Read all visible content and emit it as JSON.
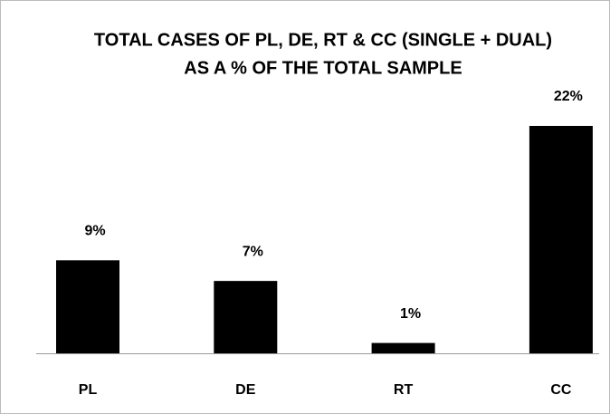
{
  "chart_data": {
    "type": "bar",
    "title": [
      "TOTAL CASES OF PL, DE, RT & CC (SINGLE + DUAL)",
      "AS A % OF THE TOTAL SAMPLE"
    ],
    "categories": [
      "PL",
      "DE",
      "RT",
      "CC"
    ],
    "values": [
      9,
      7,
      1,
      22
    ],
    "value_labels": [
      "9%",
      "7%",
      "1%",
      "22%"
    ],
    "color": "#000000"
  }
}
